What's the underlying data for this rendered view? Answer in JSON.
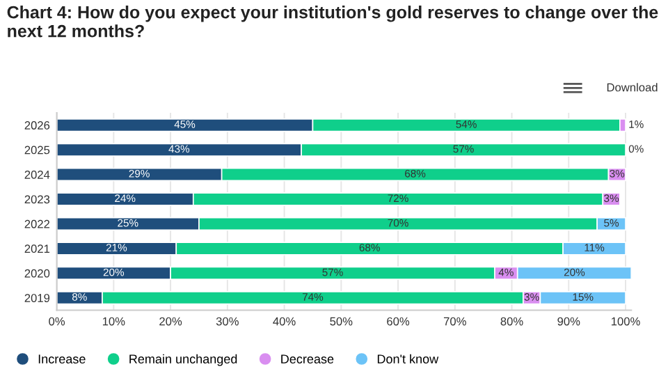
{
  "chart_data": {
    "type": "bar",
    "orientation": "horizontal",
    "stacked": true,
    "title": "Chart 4: How do you expect your institution's gold reserves to change over the next 12 months?",
    "annotations": [
      "Download"
    ],
    "categories": [
      "2026",
      "2025",
      "2024",
      "2023",
      "2022",
      "2021",
      "2020",
      "2019"
    ],
    "series": [
      {
        "name": "Increase",
        "color": "#1f4e7c",
        "values": [
          45,
          43,
          29,
          24,
          25,
          21,
          20,
          8
        ],
        "value_labels": [
          "45%",
          "43%",
          "29%",
          "24%",
          "25%",
          "21%",
          "20%",
          "8%"
        ]
      },
      {
        "name": "Remain unchanged",
        "color": "#0fcf8b",
        "values": [
          54,
          57,
          68,
          72,
          70,
          68,
          57,
          74
        ],
        "value_labels": [
          "54%",
          "57%",
          "68%",
          "72%",
          "70%",
          "68%",
          "57%",
          "74%"
        ]
      },
      {
        "name": "Decrease",
        "color": "#d98ef0",
        "values": [
          1,
          0,
          3,
          3,
          0,
          0,
          4,
          3
        ],
        "value_labels": [
          "1%",
          "0%",
          "3%",
          "3%",
          null,
          null,
          "4%",
          "3%"
        ]
      },
      {
        "name": "Don't know",
        "color": "#6cc3f7",
        "values": [
          0,
          0,
          0,
          0,
          5,
          11,
          20,
          15
        ],
        "value_labels": [
          null,
          null,
          null,
          null,
          "5%",
          "11%",
          "20%",
          "15%"
        ]
      }
    ],
    "xlim": [
      0,
      101
    ],
    "xticks": [
      {
        "value": 0,
        "label": "0%"
      },
      {
        "value": 10,
        "label": "10%"
      },
      {
        "value": 20,
        "label": "20%"
      },
      {
        "value": 30,
        "label": "30%"
      },
      {
        "value": 40,
        "label": "40%"
      },
      {
        "value": 50,
        "label": "50%"
      },
      {
        "value": 60,
        "label": "60%"
      },
      {
        "value": 70,
        "label": "70%"
      },
      {
        "value": 80,
        "label": "80%"
      },
      {
        "value": 90,
        "label": "90%"
      },
      {
        "value": 100,
        "label": "100%"
      }
    ],
    "grid": "x",
    "legend": "bottom left"
  }
}
